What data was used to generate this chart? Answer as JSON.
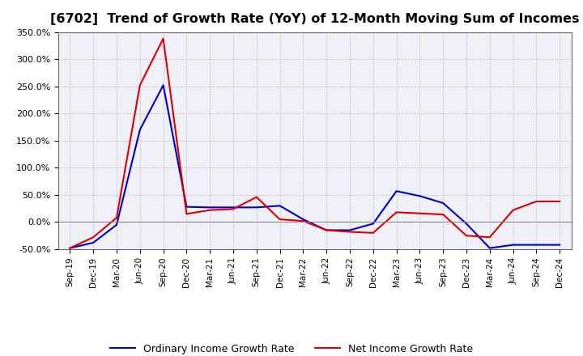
{
  "title": "[6702]  Trend of Growth Rate (YoY) of 12-Month Moving Sum of Incomes",
  "title_fontsize": 11.5,
  "background_color": "#ffffff",
  "plot_bg_color": "#f0f0f8",
  "grid_color": "#aaaaaa",
  "xlabels": [
    "Sep-19",
    "Dec-19",
    "Mar-20",
    "Jun-20",
    "Sep-20",
    "Dec-20",
    "Mar-21",
    "Jun-21",
    "Sep-21",
    "Dec-21",
    "Mar-22",
    "Jun-22",
    "Sep-22",
    "Dec-22",
    "Mar-23",
    "Jun-23",
    "Sep-23",
    "Dec-23",
    "Mar-24",
    "Jun-24",
    "Sep-24",
    "Dec-24"
  ],
  "ordinary_income": [
    -48,
    -38,
    -5,
    170,
    252,
    28,
    27,
    27,
    27,
    30,
    5,
    -15,
    -15,
    -3,
    57,
    48,
    35,
    -3,
    -48,
    -42,
    -42,
    -42
  ],
  "net_income": [
    -48,
    -28,
    8,
    252,
    338,
    15,
    22,
    24,
    46,
    5,
    2,
    -15,
    -18,
    -20,
    18,
    16,
    14,
    -25,
    -28,
    22,
    38,
    38
  ],
  "ylim": [
    -50,
    350
  ],
  "yticks": [
    -50,
    0,
    50,
    100,
    150,
    200,
    250,
    300,
    350
  ],
  "line_color_ordinary": "#0000cc",
  "line_color_net": "#dd0000",
  "line_width": 1.5,
  "legend_ordinary": "Ordinary Income Growth Rate",
  "legend_net": "Net Income Growth Rate"
}
